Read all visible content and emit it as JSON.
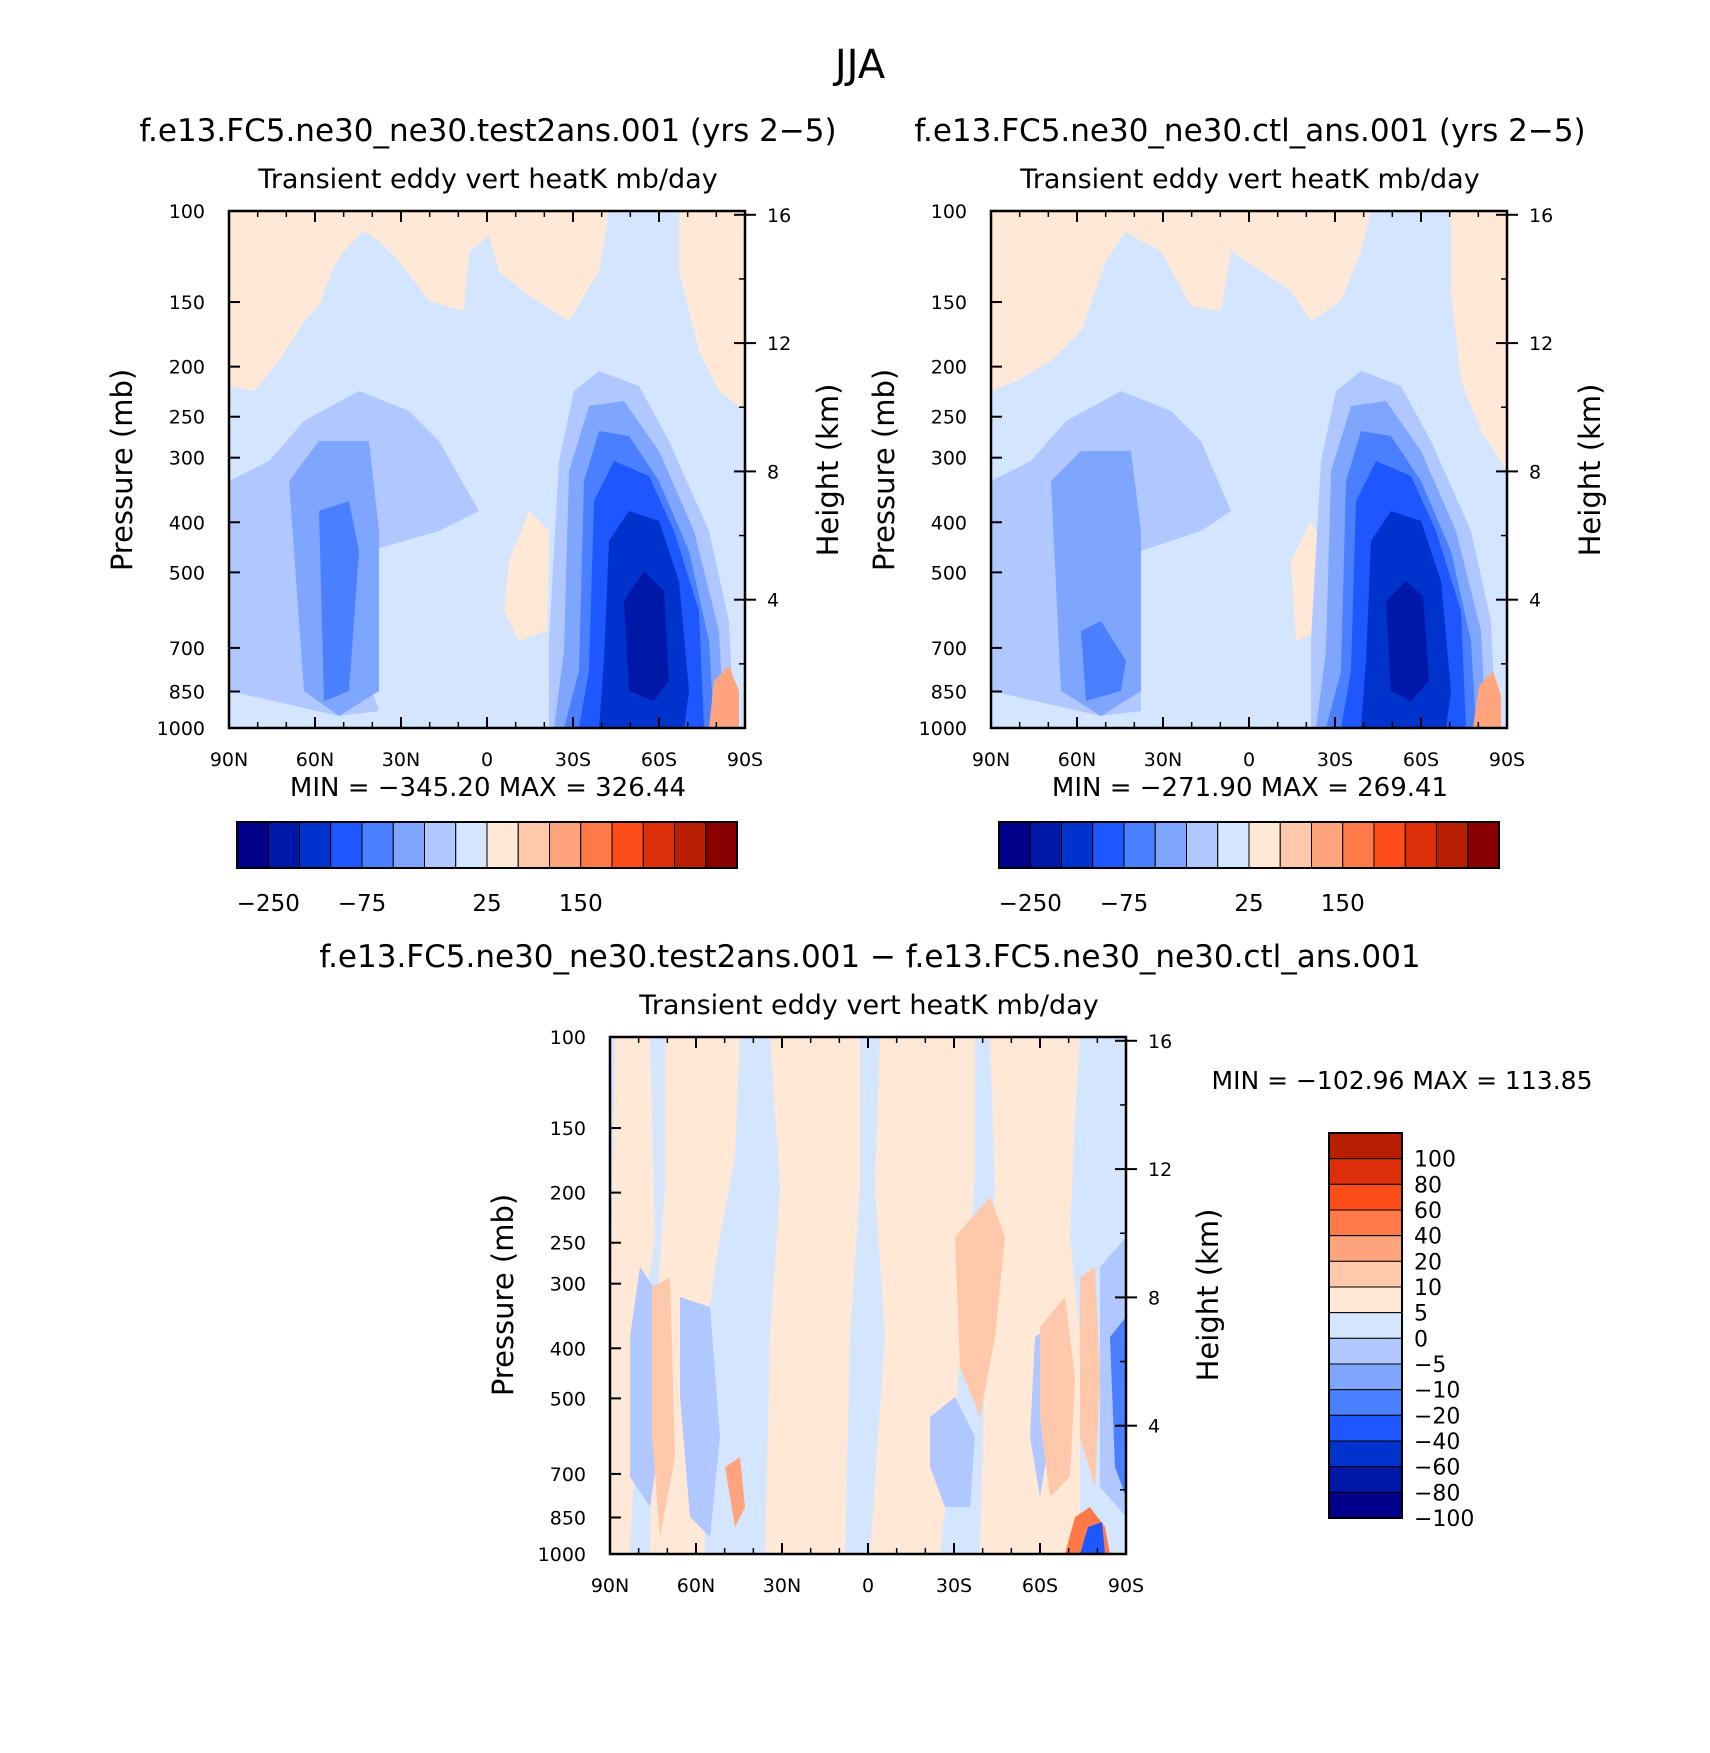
{
  "figure": {
    "title": "JJA"
  },
  "colors": {
    "cbar_15": [
      "#00008b",
      "#0018a8",
      "#0033cc",
      "#1e56ff",
      "#4a80ff",
      "#7fa6ff",
      "#b0c8ff",
      "#d4e6ff",
      "#ffe8d6",
      "#ffc8aa",
      "#ffa47c",
      "#ff7a48",
      "#ff4d1a",
      "#dd2e0a",
      "#b81f00",
      "#880000"
    ],
    "diff_14": [
      "#00008b",
      "#0018a8",
      "#0033cc",
      "#1e56ff",
      "#4a80ff",
      "#7fa6ff",
      "#b0c8ff",
      "#d4e6ff",
      "#ffe8d6",
      "#ffc8aa",
      "#ffa47c",
      "#ff7a48",
      "#ff4d1a",
      "#dd2e0a",
      "#b81f00"
    ]
  },
  "chart_data": [
    {
      "type": "heatmap",
      "panel": "test",
      "case_title": "f.e13.FC5.ne30_ne30.test2ans.001 (yrs 2−5)",
      "subtitle": "Transient eddy vert heatK mb/day",
      "ylabel": "Pressure (mb)",
      "ylabel_right": "Height (km)",
      "x_ticks": [
        "90N",
        "60N",
        "30N",
        "0",
        "30S",
        "60S",
        "90S"
      ],
      "y_ticks": [
        "100",
        "150",
        "200",
        "250",
        "300",
        "400",
        "500",
        "700",
        "850",
        "1000"
      ],
      "y_ticks_right": [
        "16",
        "12",
        "8",
        "4"
      ],
      "stats": "MIN = −345.20   MAX = 326.44",
      "min": -345.2,
      "max": 326.44,
      "colorbar_labels": [
        "−250",
        "−75",
        "25",
        "150"
      ]
    },
    {
      "type": "heatmap",
      "panel": "ctl",
      "case_title": "f.e13.FC5.ne30_ne30.ctl_ans.001 (yrs 2−5)",
      "subtitle": "Transient eddy vert heatK mb/day",
      "ylabel": "Pressure (mb)",
      "ylabel_right": "Height (km)",
      "x_ticks": [
        "90N",
        "60N",
        "30N",
        "0",
        "30S",
        "60S",
        "90S"
      ],
      "y_ticks": [
        "100",
        "150",
        "200",
        "250",
        "300",
        "400",
        "500",
        "700",
        "850",
        "1000"
      ],
      "y_ticks_right": [
        "16",
        "12",
        "8",
        "4"
      ],
      "stats": "MIN = −271.90   MAX = 269.41",
      "min": -271.9,
      "max": 269.41,
      "colorbar_labels": [
        "−250",
        "−75",
        "25",
        "150"
      ]
    },
    {
      "type": "heatmap",
      "panel": "diff",
      "case_title": "f.e13.FC5.ne30_ne30.test2ans.001 − f.e13.FC5.ne30_ne30.ctl_ans.001",
      "subtitle": "Transient eddy vert heatK mb/day",
      "ylabel": "Pressure (mb)",
      "ylabel_right": "Height (km)",
      "x_ticks": [
        "90N",
        "60N",
        "30N",
        "0",
        "30S",
        "60S",
        "90S"
      ],
      "y_ticks": [
        "100",
        "150",
        "200",
        "250",
        "300",
        "400",
        "500",
        "700",
        "850",
        "1000"
      ],
      "y_ticks_right": [
        "16",
        "12",
        "8",
        "4"
      ],
      "stats": "MIN = −102.96   MAX = 113.85",
      "min": -102.96,
      "max": 113.85,
      "colorbar_labels": [
        "100",
        "80",
        "60",
        "40",
        "20",
        "10",
        "5",
        "0",
        "−5",
        "−10",
        "−20",
        "−40",
        "−60",
        "−80",
        "−100"
      ]
    }
  ]
}
